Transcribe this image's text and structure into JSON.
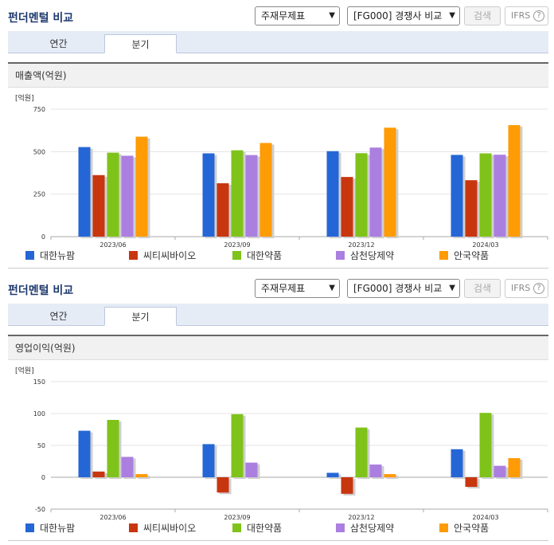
{
  "colors": {
    "대한뉴팜": "#2566d6",
    "씨티씨바이오": "#c8360f",
    "대한약품": "#7fc31a",
    "삼천당제약": "#ab7fe0",
    "안국약품": "#ff9b05"
  },
  "panels": [
    {
      "title": "펀더멘털 비교",
      "select1": "주재무제표",
      "select2": "[FG000] 경쟁사 비교",
      "search_label": "검색",
      "ifrs_label": "IFRS",
      "ifrs_help": "?",
      "tabs": [
        "연간",
        "분기"
      ],
      "active_tab": 1,
      "chart_heading": "매출액(억원)",
      "chart_data": {
        "type": "bar",
        "unit_label": "[억원]",
        "categories": [
          "2023/06",
          "2023/09",
          "2023/12",
          "2024/03"
        ],
        "ylim": [
          0,
          750
        ],
        "yticks": [
          0,
          250,
          500,
          750
        ],
        "ytick_labels": [
          "0",
          "250",
          "500",
          "750"
        ],
        "series": [
          {
            "name": "대한뉴팜",
            "values": [
              527,
              490,
              503,
              481
            ]
          },
          {
            "name": "씨티씨바이오",
            "values": [
              362,
              314,
              351,
              332
            ]
          },
          {
            "name": "대한약품",
            "values": [
              494,
              508,
              491,
              490
            ]
          },
          {
            "name": "삼천당제약",
            "values": [
              476,
              480,
              524,
              482
            ]
          },
          {
            "name": "안국약품",
            "values": [
              588,
              551,
              641,
              656
            ]
          }
        ],
        "legend": "bottom"
      }
    },
    {
      "title": "펀더멘털 비교",
      "select1": "주재무제표",
      "select2": "[FG000] 경쟁사 비교",
      "search_label": "검색",
      "ifrs_label": "IFRS",
      "ifrs_help": "?",
      "tabs": [
        "연간",
        "분기"
      ],
      "active_tab": 1,
      "chart_heading": "영업이익(억원)",
      "chart_data": {
        "type": "bar",
        "unit_label": "[억원]",
        "categories": [
          "2023/06",
          "2023/09",
          "2023/12",
          "2024/03"
        ],
        "ylim": [
          -50,
          150
        ],
        "yticks": [
          -50,
          0,
          50,
          100,
          150
        ],
        "ytick_labels": [
          "-50",
          "0",
          "50",
          "100",
          "150"
        ],
        "series": [
          {
            "name": "대한뉴팜",
            "values": [
              73,
              52,
              7,
              44
            ]
          },
          {
            "name": "씨티씨바이오",
            "values": [
              9,
              -24,
              -26,
              -15
            ]
          },
          {
            "name": "대한약품",
            "values": [
              90,
              99,
              78,
              101
            ]
          },
          {
            "name": "삼천당제약",
            "values": [
              32,
              23,
              20,
              18
            ]
          },
          {
            "name": "안국약품",
            "values": [
              5,
              0,
              5,
              30
            ]
          }
        ],
        "legend": "bottom"
      }
    }
  ]
}
